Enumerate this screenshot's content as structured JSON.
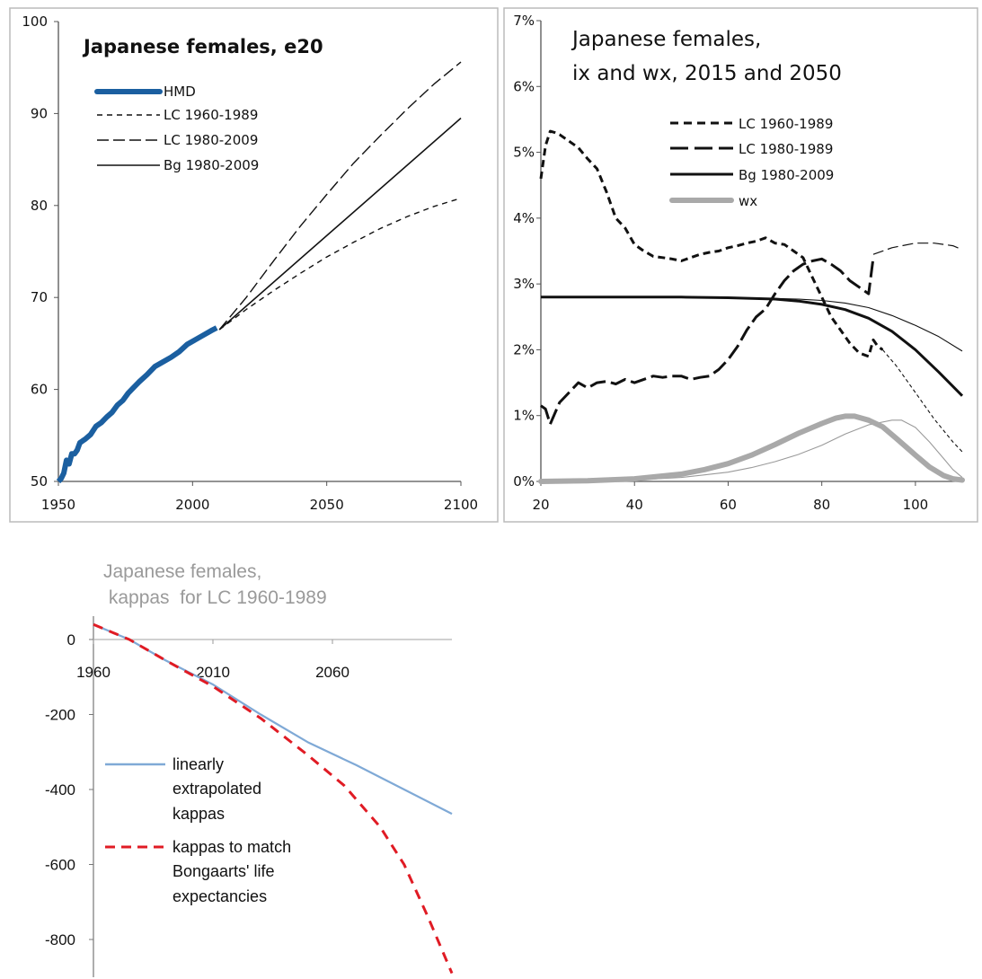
{
  "chart_data": [
    {
      "type": "line",
      "title": "Japanese females, e20",
      "xlim": [
        1950,
        2100
      ],
      "ylim": [
        50,
        100
      ],
      "x_ticks": [
        "1950",
        "2000",
        "2050",
        "2100"
      ],
      "y_ticks": [
        "50",
        "60",
        "70",
        "80",
        "90",
        "100"
      ],
      "grid": false,
      "legend_position": "top-left",
      "series": [
        {
          "name": "HMD",
          "style": "thick-blue",
          "x": [
            1950,
            1951,
            1952,
            1953,
            1954,
            1955,
            1956,
            1957,
            1958,
            1959,
            1960,
            1962,
            1964,
            1966,
            1968,
            1970,
            1972,
            1974,
            1976,
            1978,
            1980,
            1983,
            1986,
            1989,
            1992,
            1995,
            1998,
            2001,
            2004,
            2007,
            2009
          ],
          "y": [
            50,
            50.3,
            50.9,
            52.3,
            51.9,
            53.0,
            53.0,
            53.4,
            54.2,
            54.4,
            54.6,
            55.1,
            56.0,
            56.4,
            57.0,
            57.5,
            58.3,
            58.8,
            59.6,
            60.2,
            60.8,
            61.6,
            62.5,
            63.0,
            63.5,
            64.1,
            64.9,
            65.4,
            65.9,
            66.4,
            66.7
          ]
        },
        {
          "name": "LC 1960-1989",
          "style": "short-dash",
          "x": [
            2010,
            2020,
            2030,
            2040,
            2050,
            2060,
            2070,
            2080,
            2090,
            2100
          ],
          "y": [
            66.5,
            68.7,
            70.7,
            72.6,
            74.4,
            76.0,
            77.5,
            78.8,
            79.9,
            80.8
          ]
        },
        {
          "name": "LC 1980-2009",
          "style": "long-dash",
          "x": [
            2010,
            2020,
            2030,
            2040,
            2050,
            2060,
            2070,
            2080,
            2090,
            2100
          ],
          "y": [
            66.5,
            70.0,
            73.9,
            77.7,
            81.2,
            84.6,
            87.6,
            90.5,
            93.2,
            95.6
          ]
        },
        {
          "name": "Bg 1980-2009",
          "style": "solid-thin",
          "x": [
            2010,
            2100
          ],
          "y": [
            66.5,
            89.5
          ]
        }
      ]
    },
    {
      "type": "line",
      "title_lines": [
        "Japanese females,",
        "ix and wx, 2015 and 2050"
      ],
      "xlim": [
        20,
        110
      ],
      "ylim": [
        0,
        7
      ],
      "x_ticks": [
        "20",
        "40",
        "60",
        "80",
        "100"
      ],
      "y_ticks": [
        "0%",
        "1%",
        "2%",
        "3%",
        "4%",
        "5%",
        "6%",
        "7%"
      ],
      "grid": false,
      "legend_position": "top-right",
      "legend": [
        "LC 1960-1989",
        "LC 1980-1989",
        "Bg 1980-2009",
        "wx"
      ],
      "series": [
        {
          "name": "LC 1960-1989",
          "year": "2015",
          "style": "short-dash-thick",
          "x": [
            20,
            21,
            22,
            23,
            24,
            26,
            28,
            30,
            32,
            34,
            36,
            38,
            40,
            42,
            44,
            46,
            48,
            50,
            52,
            54,
            56,
            58,
            60,
            62,
            64,
            66,
            68,
            70,
            72,
            74,
            76,
            78,
            80,
            82,
            84,
            86,
            88,
            90,
            91,
            92,
            93
          ],
          "y": [
            4.6,
            5.1,
            5.32,
            5.3,
            5.27,
            5.17,
            5.07,
            4.9,
            4.75,
            4.4,
            4.0,
            3.85,
            3.6,
            3.5,
            3.42,
            3.4,
            3.38,
            3.35,
            3.4,
            3.45,
            3.48,
            3.5,
            3.55,
            3.58,
            3.62,
            3.65,
            3.7,
            3.62,
            3.6,
            3.5,
            3.4,
            3.1,
            2.8,
            2.5,
            2.3,
            2.1,
            1.95,
            1.9,
            2.15,
            2.05,
            2.0
          ]
        },
        {
          "name": "LC 1960-1989",
          "year": "2050",
          "style": "short-dash-thin",
          "x": [
            93,
            96,
            100,
            104,
            108,
            110
          ],
          "y": [
            2.0,
            1.75,
            1.35,
            0.95,
            0.6,
            0.45
          ]
        },
        {
          "name": "LC 1980-1989",
          "year": "2015",
          "style": "long-dash-thick",
          "x": [
            20,
            21,
            22,
            24,
            26,
            28,
            30,
            32,
            34,
            36,
            38,
            40,
            42,
            44,
            46,
            48,
            50,
            52,
            54,
            56,
            58,
            60,
            62,
            64,
            66,
            68,
            70,
            72,
            74,
            76,
            78,
            80,
            82,
            84,
            86,
            88,
            90,
            91
          ],
          "y": [
            1.15,
            1.1,
            0.87,
            1.2,
            1.35,
            1.5,
            1.42,
            1.5,
            1.52,
            1.48,
            1.55,
            1.5,
            1.55,
            1.6,
            1.58,
            1.6,
            1.6,
            1.55,
            1.58,
            1.6,
            1.7,
            1.85,
            2.05,
            2.3,
            2.5,
            2.62,
            2.85,
            3.05,
            3.2,
            3.3,
            3.35,
            3.38,
            3.3,
            3.2,
            3.05,
            2.95,
            2.85,
            3.4
          ]
        },
        {
          "name": "LC 1980-1989",
          "year": "2050",
          "style": "long-dash-thin",
          "x": [
            91,
            95,
            100,
            104,
            108,
            110
          ],
          "y": [
            3.45,
            3.55,
            3.62,
            3.62,
            3.58,
            3.52
          ]
        },
        {
          "name": "Bg 1980-2009",
          "year": "2015",
          "style": "solid-thick",
          "x": [
            20,
            30,
            40,
            50,
            60,
            70,
            75,
            80,
            85,
            90,
            95,
            100,
            105,
            110
          ],
          "y": [
            2.8,
            2.8,
            2.8,
            2.8,
            2.79,
            2.77,
            2.74,
            2.69,
            2.61,
            2.48,
            2.28,
            2.0,
            1.66,
            1.3
          ]
        },
        {
          "name": "Bg 1980-2009",
          "year": "2050",
          "style": "solid-thin",
          "x": [
            20,
            30,
            40,
            50,
            60,
            70,
            75,
            80,
            85,
            90,
            95,
            100,
            105,
            110
          ],
          "y": [
            2.8,
            2.8,
            2.8,
            2.8,
            2.79,
            2.78,
            2.77,
            2.75,
            2.71,
            2.64,
            2.52,
            2.37,
            2.2,
            1.98
          ]
        },
        {
          "name": "wx",
          "year": "2015",
          "style": "gray-thick",
          "x": [
            20,
            30,
            40,
            50,
            55,
            60,
            65,
            70,
            75,
            80,
            83,
            85,
            87,
            90,
            93,
            96,
            100,
            103,
            106,
            108,
            110
          ],
          "y": [
            0.0,
            0.01,
            0.04,
            0.11,
            0.18,
            0.27,
            0.4,
            0.56,
            0.73,
            0.88,
            0.96,
            0.99,
            0.99,
            0.93,
            0.83,
            0.65,
            0.4,
            0.22,
            0.09,
            0.04,
            0.02
          ]
        },
        {
          "name": "wx",
          "year": "2050",
          "style": "gray-thin",
          "x": [
            20,
            30,
            40,
            50,
            55,
            60,
            65,
            70,
            75,
            80,
            85,
            90,
            95,
            97,
            100,
            103,
            106,
            108,
            110
          ],
          "y": [
            0.0,
            0.01,
            0.02,
            0.06,
            0.1,
            0.14,
            0.21,
            0.3,
            0.41,
            0.55,
            0.72,
            0.86,
            0.93,
            0.93,
            0.82,
            0.6,
            0.35,
            0.18,
            0.06
          ]
        }
      ]
    },
    {
      "type": "line",
      "title_lines": [
        "Japanese females,",
        " kappas  for LC 1960-1989"
      ],
      "xlim": [
        1960,
        2110
      ],
      "ylim": [
        -900,
        50
      ],
      "x_ticks": [
        "1960",
        "2010",
        "2060"
      ],
      "y_ticks": [
        "0",
        "-200",
        "-400",
        "-600",
        "-800"
      ],
      "grid": false,
      "legend_position": "left",
      "series": [
        {
          "name": "linearly extrapolated kappas",
          "legend_lines": [
            "linearly",
            "extrapolated",
            "kappas"
          ],
          "color": "#7fa9d6",
          "style": "solid",
          "x": [
            1960,
            1975,
            1990,
            2010,
            2030,
            2050,
            2070,
            2090,
            2110
          ],
          "y": [
            40,
            0,
            -55,
            -120,
            -200,
            -275,
            -335,
            -400,
            -465
          ]
        },
        {
          "name": "kappas to match Bongaarts' life expectancies",
          "legend_lines": [
            "kappas to match",
            "Bongaarts' life",
            "expectancies"
          ],
          "color": "#e01b24",
          "style": "dashed",
          "x": [
            1960,
            1975,
            1990,
            2010,
            2030,
            2050,
            2065,
            2080,
            2090,
            2100,
            2110
          ],
          "y": [
            40,
            0,
            -55,
            -125,
            -210,
            -310,
            -390,
            -500,
            -600,
            -740,
            -890
          ]
        }
      ]
    }
  ]
}
